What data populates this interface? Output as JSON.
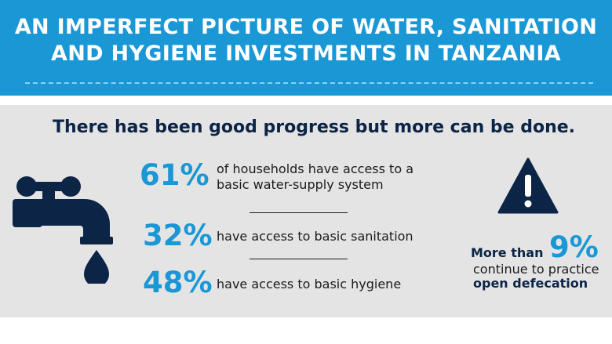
{
  "header": {
    "title_line1": "AN IMPERFECT PICTURE OF WATER, SANITATION",
    "title_line2": "AND HYGIENE INVESTMENTS IN TANZANIA"
  },
  "headline": "There has been good progress but more can be done.",
  "stats": [
    {
      "value": "61%",
      "text_line1": "of households have access to a",
      "text_line2": "basic water-supply system"
    },
    {
      "value": "32%",
      "text_line1": "have access to basic sanitation"
    },
    {
      "value": "48%",
      "text_line1": "have access to basic hygiene"
    }
  ],
  "warning": {
    "prefix": "More than",
    "value": "9%",
    "line2": "continue to practice",
    "line3": "open defecation"
  },
  "icons": {
    "faucet": "faucet-icon",
    "warning": "warning-triangle-icon"
  },
  "colors": {
    "accent": "#1a97d5",
    "dark": "#0c2446",
    "panel": "#e4e4e4"
  }
}
